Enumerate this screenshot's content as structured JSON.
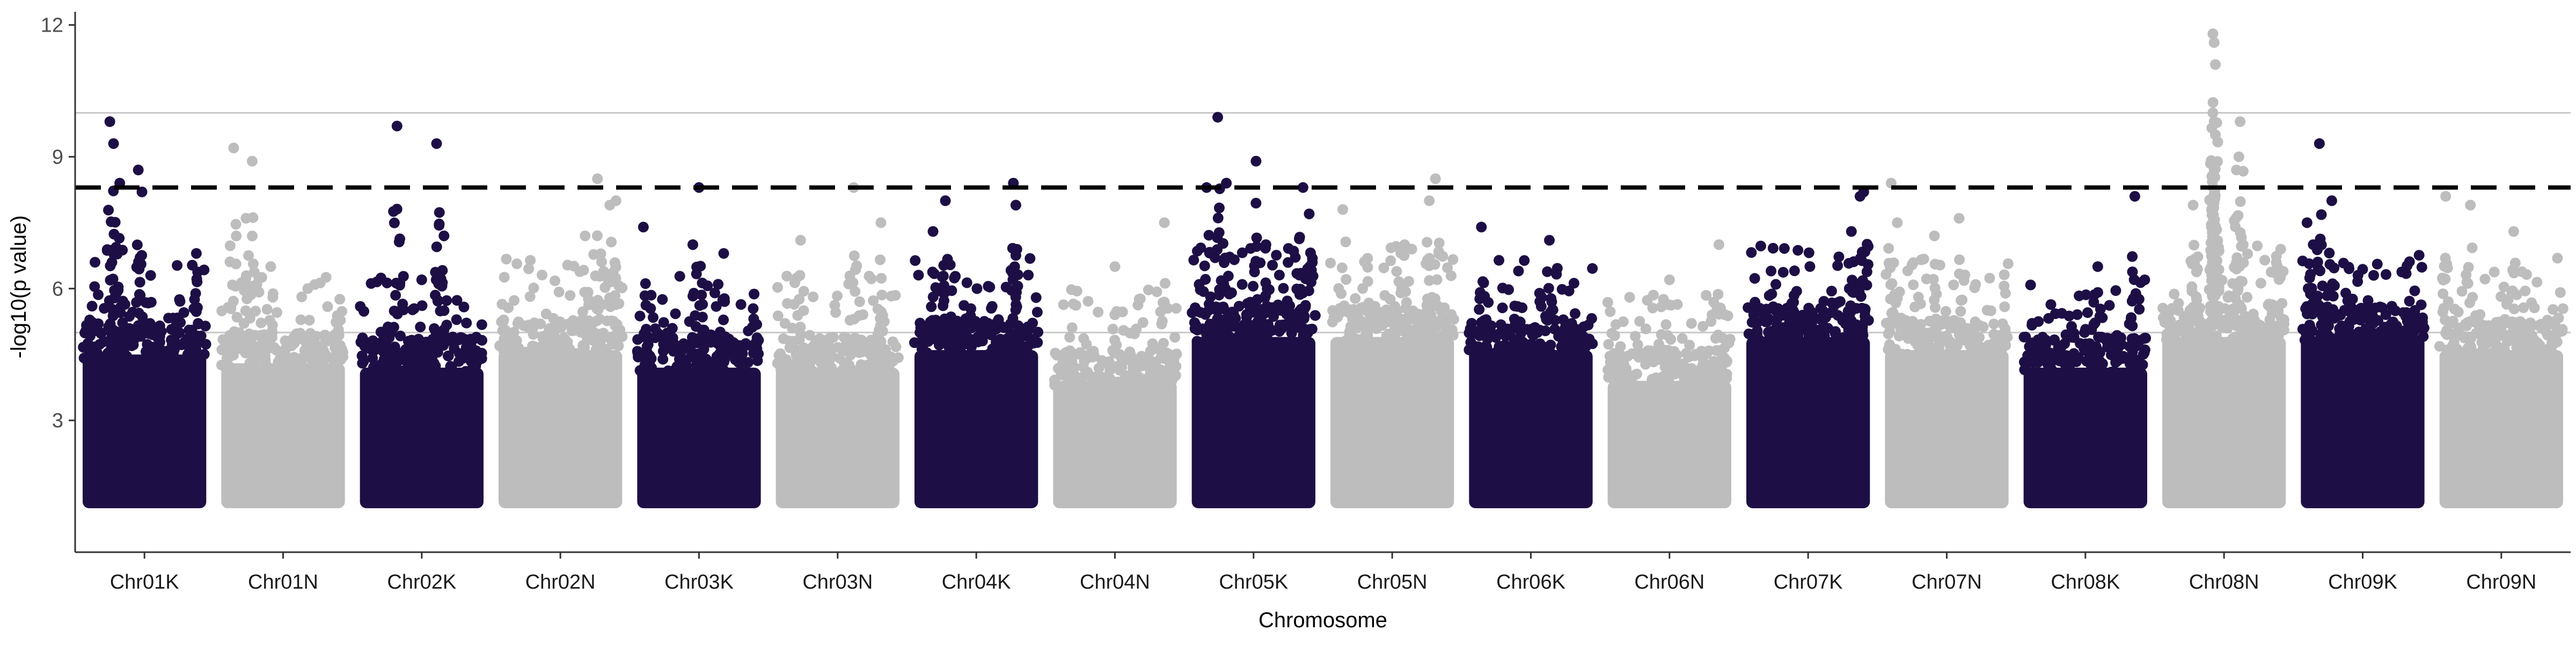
{
  "chart_data": {
    "type": "scatter",
    "title": "",
    "xlabel": "Chromosome",
    "ylabel": "-log10(p value)",
    "ylim": [
      0,
      12.3
    ],
    "yticks": [
      3,
      6,
      9,
      12
    ],
    "grid": "horizontal lines at y = 5 and y = 10",
    "reference_lines": [
      {
        "y": 5,
        "style": "solid",
        "color": "#c8c8c8"
      },
      {
        "y": 10,
        "style": "solid",
        "color": "#c8c8c8"
      },
      {
        "y": 8.3,
        "style": "dashed",
        "color": "#000000"
      }
    ],
    "colors": {
      "odd": "#1d0f45",
      "even": "#bdbdbd"
    },
    "categories": [
      "Chr01K",
      "Chr01N",
      "Chr02K",
      "Chr02N",
      "Chr03K",
      "Chr03N",
      "Chr04K",
      "Chr04N",
      "Chr05K",
      "Chr05N",
      "Chr06K",
      "Chr06N",
      "Chr07K",
      "Chr07N",
      "Chr08K",
      "Chr08N",
      "Chr09K",
      "Chr09N"
    ],
    "min_value": 1.0,
    "chromosomes": [
      {
        "name": "Chr01K",
        "color": "#1d0f45",
        "band_top": 4.9,
        "peaks": [
          {
            "pos": 0.1,
            "y": 6.6
          },
          {
            "pos": 0.22,
            "y": 9.8
          },
          {
            "pos": 0.25,
            "y": 9.3
          },
          {
            "pos": 0.3,
            "y": 8.4
          },
          {
            "pos": 0.45,
            "y": 8.7
          },
          {
            "pos": 0.48,
            "y": 8.2
          },
          {
            "pos": 0.55,
            "y": 6.3
          },
          {
            "pos": 0.92,
            "y": 6.8
          }
        ]
      },
      {
        "name": "Chr01N",
        "color": "#bdbdbd",
        "band_top": 4.7,
        "peaks": [
          {
            "pos": 0.1,
            "y": 9.2
          },
          {
            "pos": 0.25,
            "y": 8.9
          },
          {
            "pos": 0.2,
            "y": 7.6
          },
          {
            "pos": 0.4,
            "y": 6.5
          },
          {
            "pos": 0.7,
            "y": 6.0
          }
        ]
      },
      {
        "name": "Chr02K",
        "color": "#1d0f45",
        "band_top": 4.6,
        "peaks": [
          {
            "pos": 0.3,
            "y": 9.7
          },
          {
            "pos": 0.62,
            "y": 9.3
          },
          {
            "pos": 0.68,
            "y": 7.2
          },
          {
            "pos": 0.5,
            "y": 6.2
          }
        ]
      },
      {
        "name": "Chr02N",
        "color": "#bdbdbd",
        "band_top": 5.0,
        "peaks": [
          {
            "pos": 0.8,
            "y": 8.5
          },
          {
            "pos": 0.9,
            "y": 7.9
          },
          {
            "pos": 0.95,
            "y": 8.0
          },
          {
            "pos": 0.7,
            "y": 7.2
          }
        ]
      },
      {
        "name": "Chr03K",
        "color": "#1d0f45",
        "band_top": 4.6,
        "peaks": [
          {
            "pos": 0.05,
            "y": 7.4
          },
          {
            "pos": 0.5,
            "y": 8.3
          },
          {
            "pos": 0.45,
            "y": 7.0
          },
          {
            "pos": 0.7,
            "y": 6.8
          }
        ]
      },
      {
        "name": "Chr03N",
        "color": "#bdbdbd",
        "band_top": 4.6,
        "peaks": [
          {
            "pos": 0.63,
            "y": 8.3
          },
          {
            "pos": 0.2,
            "y": 7.1
          },
          {
            "pos": 0.85,
            "y": 7.5
          }
        ]
      },
      {
        "name": "Chr04K",
        "color": "#1d0f45",
        "band_top": 5.0,
        "peaks": [
          {
            "pos": 0.25,
            "y": 8.0
          },
          {
            "pos": 0.8,
            "y": 8.4
          },
          {
            "pos": 0.82,
            "y": 7.9
          },
          {
            "pos": 0.15,
            "y": 7.3
          }
        ]
      },
      {
        "name": "Chr04N",
        "color": "#bdbdbd",
        "band_top": 4.3,
        "peaks": [
          {
            "pos": 0.5,
            "y": 6.5
          },
          {
            "pos": 0.9,
            "y": 7.5
          }
        ]
      },
      {
        "name": "Chr05K",
        "color": "#1d0f45",
        "band_top": 5.3,
        "peaks": [
          {
            "pos": 0.12,
            "y": 8.3
          },
          {
            "pos": 0.21,
            "y": 9.9
          },
          {
            "pos": 0.28,
            "y": 8.4
          },
          {
            "pos": 0.52,
            "y": 8.9
          },
          {
            "pos": 0.9,
            "y": 8.3
          },
          {
            "pos": 0.95,
            "y": 7.7
          },
          {
            "pos": 0.6,
            "y": 7.0
          }
        ]
      },
      {
        "name": "Chr05N",
        "color": "#bdbdbd",
        "band_top": 5.3,
        "peaks": [
          {
            "pos": 0.85,
            "y": 8.5
          },
          {
            "pos": 0.8,
            "y": 8.0
          },
          {
            "pos": 0.1,
            "y": 7.8
          },
          {
            "pos": 0.6,
            "y": 7.0
          }
        ]
      },
      {
        "name": "Chr06K",
        "color": "#1d0f45",
        "band_top": 5.0,
        "peaks": [
          {
            "pos": 0.1,
            "y": 7.4
          },
          {
            "pos": 0.65,
            "y": 7.1
          },
          {
            "pos": 0.4,
            "y": 6.4
          }
        ]
      },
      {
        "name": "Chr06N",
        "color": "#bdbdbd",
        "band_top": 4.3,
        "peaks": [
          {
            "pos": 0.9,
            "y": 7.0
          },
          {
            "pos": 0.5,
            "y": 6.2
          }
        ]
      },
      {
        "name": "Chr07K",
        "color": "#1d0f45",
        "band_top": 5.3,
        "peaks": [
          {
            "pos": 0.95,
            "y": 8.2
          },
          {
            "pos": 0.92,
            "y": 8.1
          },
          {
            "pos": 0.85,
            "y": 7.3
          },
          {
            "pos": 0.2,
            "y": 6.4
          }
        ]
      },
      {
        "name": "Chr07N",
        "color": "#bdbdbd",
        "band_top": 5.0,
        "peaks": [
          {
            "pos": 0.05,
            "y": 8.4
          },
          {
            "pos": 0.1,
            "y": 7.5
          },
          {
            "pos": 0.6,
            "y": 7.6
          },
          {
            "pos": 0.4,
            "y": 7.2
          }
        ]
      },
      {
        "name": "Chr08K",
        "color": "#1d0f45",
        "band_top": 4.6,
        "peaks": [
          {
            "pos": 0.9,
            "y": 8.1
          },
          {
            "pos": 0.6,
            "y": 6.5
          }
        ]
      },
      {
        "name": "Chr08N",
        "color": "#bdbdbd",
        "band_top": 5.3,
        "peaks": [
          {
            "pos": 0.41,
            "y": 11.8
          },
          {
            "pos": 0.42,
            "y": 11.6
          },
          {
            "pos": 0.43,
            "y": 11.1
          },
          {
            "pos": 0.41,
            "y": 10.0
          },
          {
            "pos": 0.42,
            "y": 9.8
          },
          {
            "pos": 0.43,
            "y": 9.5
          },
          {
            "pos": 0.42,
            "y": 8.7
          },
          {
            "pos": 0.63,
            "y": 9.8
          },
          {
            "pos": 0.62,
            "y": 9.0
          },
          {
            "pos": 0.6,
            "y": 8.7
          },
          {
            "pos": 0.25,
            "y": 7.9
          }
        ]
      },
      {
        "name": "Chr09K",
        "color": "#1d0f45",
        "band_top": 5.3,
        "peaks": [
          {
            "pos": 0.15,
            "y": 9.3
          },
          {
            "pos": 0.25,
            "y": 8.0
          },
          {
            "pos": 0.05,
            "y": 7.5
          },
          {
            "pos": 0.1,
            "y": 7.0
          }
        ]
      },
      {
        "name": "Chr09N",
        "color": "#bdbdbd",
        "band_top": 5.0,
        "peaks": [
          {
            "pos": 0.05,
            "y": 8.1
          },
          {
            "pos": 0.25,
            "y": 7.9
          },
          {
            "pos": 0.6,
            "y": 7.3
          }
        ]
      }
    ]
  }
}
